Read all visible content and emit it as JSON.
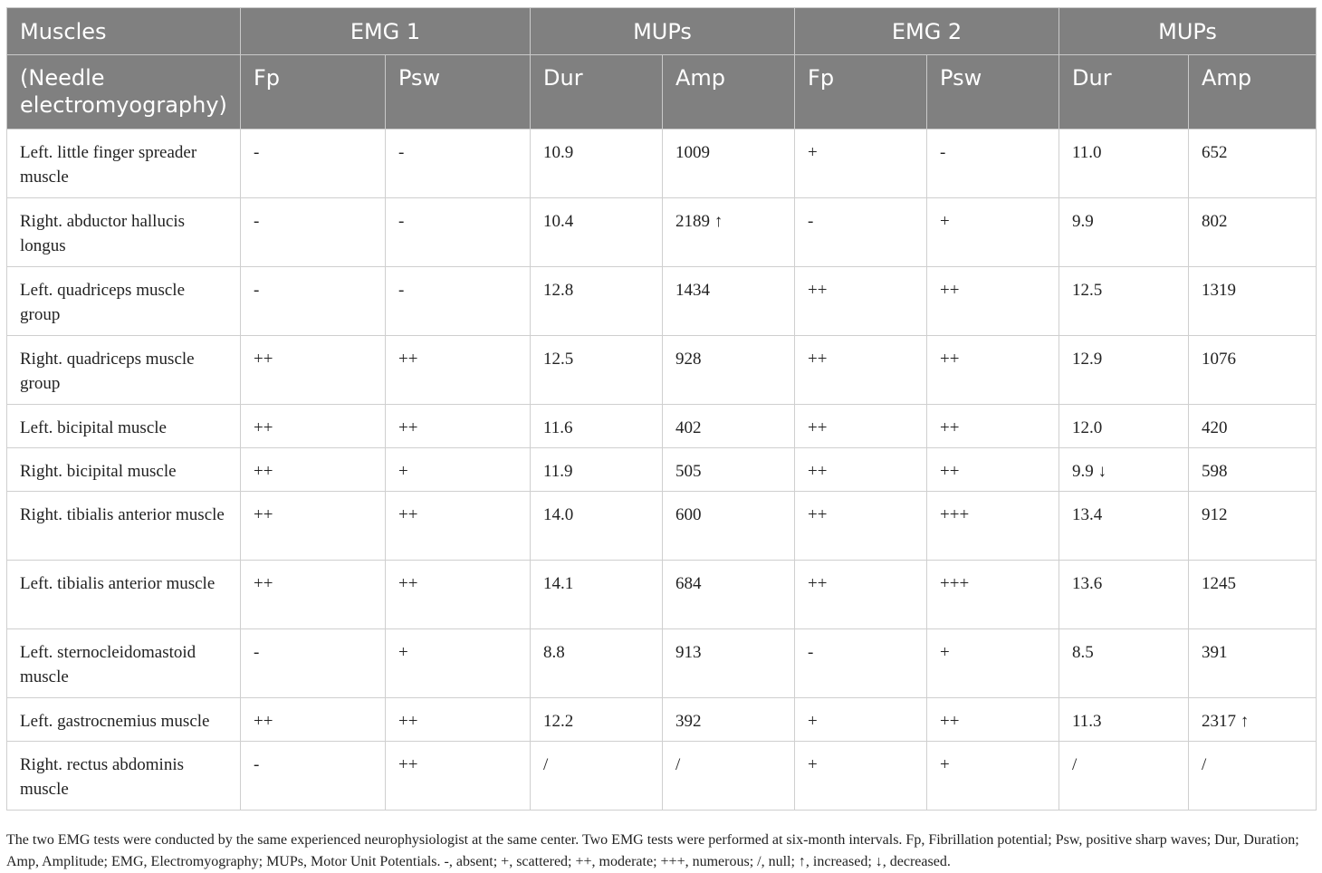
{
  "header": {
    "row1": {
      "muscles": "Muscles",
      "emg1": "EMG 1",
      "mups1": "MUPs",
      "emg2": "EMG 2",
      "mups2": "MUPs"
    },
    "row2": {
      "needle": "(Needle electromyography)",
      "fp1": "Fp",
      "psw1": "Psw",
      "dur1": "Dur",
      "amp1": "Amp",
      "fp2": "Fp",
      "psw2": "Psw",
      "dur2": "Dur",
      "amp2": "Amp"
    }
  },
  "rows": [
    {
      "muscle": "Left. little finger spreader muscle",
      "fp1": "-",
      "psw1": "-",
      "dur1": "10.9",
      "amp1": "1009",
      "fp2": "+",
      "psw2": "-",
      "dur2": "11.0",
      "amp2": "652"
    },
    {
      "muscle": "Right. abductor hallucis longus",
      "fp1": "-",
      "psw1": "-",
      "dur1": "10.4",
      "amp1": "2189 ↑",
      "fp2": "-",
      "psw2": "+",
      "dur2": "9.9",
      "amp2": "802"
    },
    {
      "muscle": "Left. quadriceps muscle group",
      "fp1": "-",
      "psw1": "-",
      "dur1": "12.8",
      "amp1": "1434",
      "fp2": "++",
      "psw2": "++",
      "dur2": "12.5",
      "amp2": "1319"
    },
    {
      "muscle": "Right. quadriceps muscle group",
      "fp1": "++",
      "psw1": "++",
      "dur1": "12.5",
      "amp1": "928",
      "fp2": "++",
      "psw2": "++",
      "dur2": "12.9",
      "amp2": "1076"
    },
    {
      "muscle": "Left. bicipital muscle",
      "fp1": "++",
      "psw1": "++",
      "dur1": "11.6",
      "amp1": "402",
      "fp2": "++",
      "psw2": "++",
      "dur2": "12.0",
      "amp2": "420"
    },
    {
      "muscle": "Right. bicipital muscle",
      "fp1": "++",
      "psw1": "+",
      "dur1": "11.9",
      "amp1": "505",
      "fp2": "++",
      "psw2": "++",
      "dur2": "9.9 ↓",
      "amp2": "598"
    },
    {
      "muscle": "Right. tibialis anterior muscle",
      "fp1": "++",
      "psw1": "++",
      "dur1": "14.0",
      "amp1": "600",
      "fp2": "++",
      "psw2": "+++",
      "dur2": "13.4",
      "amp2": "912"
    },
    {
      "muscle": "Left. tibialis anterior muscle",
      "fp1": "++",
      "psw1": "++",
      "dur1": "14.1",
      "amp1": "684",
      "fp2": "++",
      "psw2": "+++",
      "dur2": "13.6",
      "amp2": "1245"
    },
    {
      "muscle": "Left. sternocleidomastoid muscle",
      "fp1": "-",
      "psw1": "+",
      "dur1": "8.8",
      "amp1": "913",
      "fp2": "-",
      "psw2": "+",
      "dur2": "8.5",
      "amp2": "391"
    },
    {
      "muscle": "Left. gastrocnemius muscle",
      "fp1": "++",
      "psw1": "++",
      "dur1": "12.2",
      "amp1": "392",
      "fp2": "+",
      "psw2": "++",
      "dur2": "11.3",
      "amp2": "2317 ↑"
    },
    {
      "muscle": "Right. rectus abdominis muscle",
      "fp1": "-",
      "psw1": "++",
      "dur1": "/",
      "amp1": "/",
      "fp2": "+",
      "psw2": "+",
      "dur2": "/",
      "amp2": "/"
    }
  ],
  "footnote": "The two EMG tests were conducted by the same experienced neurophysiologist at the same center. Two EMG tests were performed at six-month intervals. Fp, Fibrillation potential; Psw, positive sharp waves; Dur, Duration; Amp, Amplitude; EMG, Electromyography; MUPs, Motor Unit Potentials. -, absent; +, scattered; ++, moderate; +++, numerous; /, null; ↑, increased; ↓, decreased."
}
